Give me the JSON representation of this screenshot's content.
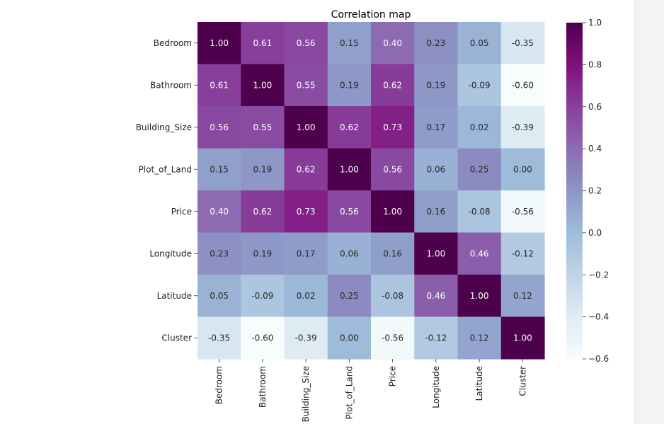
{
  "chart_data": {
    "type": "heatmap",
    "title": "Correlation map",
    "rows": [
      "Bedroom",
      "Bathroom",
      "Building_Size",
      "Plot_of_Land",
      "Price",
      "Longitude",
      "Latitude",
      "Cluster"
    ],
    "columns": [
      "Bedroom",
      "Bathroom",
      "Building_Size",
      "Plot_of_Land",
      "Price",
      "Longitude",
      "Latitude",
      "Cluster"
    ],
    "values": [
      [
        1.0,
        0.61,
        0.56,
        0.15,
        0.4,
        0.23,
        0.05,
        -0.35
      ],
      [
        0.61,
        1.0,
        0.55,
        0.19,
        0.62,
        0.19,
        -0.09,
        -0.6
      ],
      [
        0.56,
        0.55,
        1.0,
        0.62,
        0.73,
        0.17,
        0.02,
        -0.39
      ],
      [
        0.15,
        0.19,
        0.62,
        1.0,
        0.56,
        0.06,
        0.25,
        0.0
      ],
      [
        0.4,
        0.62,
        0.73,
        0.56,
        1.0,
        0.16,
        -0.08,
        -0.56
      ],
      [
        0.23,
        0.19,
        0.17,
        0.06,
        0.16,
        1.0,
        0.46,
        -0.12
      ],
      [
        0.05,
        -0.09,
        0.02,
        0.25,
        -0.08,
        0.46,
        1.0,
        0.12
      ],
      [
        -0.35,
        -0.6,
        -0.39,
        0.0,
        -0.56,
        -0.12,
        0.12,
        1.0
      ]
    ],
    "value_format": "0.00",
    "colormap": "BuPu",
    "colorbar": {
      "range": [
        -0.6,
        1.0
      ],
      "ticks": [
        1.0,
        0.8,
        0.6,
        0.4,
        0.2,
        0.0,
        -0.2,
        -0.4,
        -0.6
      ],
      "tick_labels": [
        "1.0",
        "0.8",
        "0.6",
        "0.4",
        "0.2",
        "0.0",
        "−0.2",
        "−0.4",
        "−0.6"
      ]
    },
    "colormap_stops": [
      "#f7fcfd",
      "#e0ecf4",
      "#bfd3e6",
      "#9ebcda",
      "#8c96c6",
      "#8c6bb1",
      "#88419d",
      "#810f7c",
      "#4d004b"
    ],
    "x_tick_rotation": "vertical",
    "grid": false
  }
}
